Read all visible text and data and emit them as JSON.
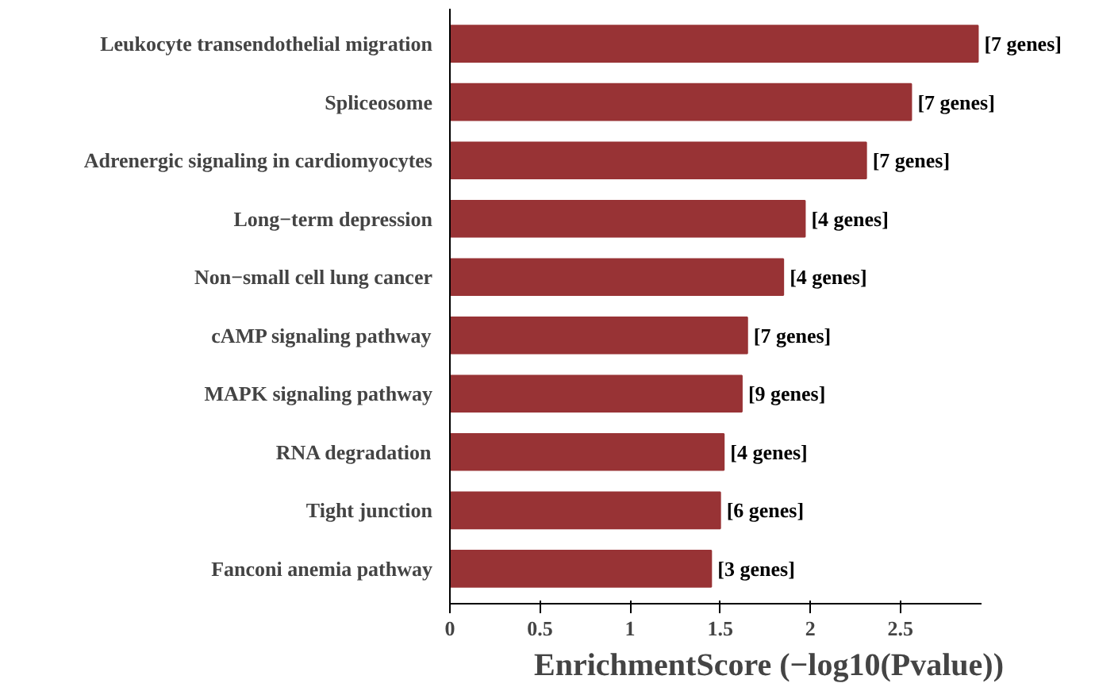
{
  "chart_data": {
    "type": "bar",
    "orientation": "horizontal",
    "xlabel": "EnrichmentScore (−log10(Pvalue))",
    "categories": [
      "Leukocyte transendothelial migration",
      "Spliceosome",
      "Adrenergic signaling in cardiomyocytes",
      "Long−term depression",
      "Non−small cell lung cancer",
      "cAMP signaling pathway",
      "MAPK signaling pathway",
      "RNA degradation",
      "Tight junction",
      "Fanconi anemia pathway"
    ],
    "values": [
      2.93,
      2.56,
      2.31,
      1.97,
      1.85,
      1.65,
      1.62,
      1.52,
      1.5,
      1.45
    ],
    "annotations": [
      {
        "text": "[7 genes]",
        "x": 2.93,
        "y": "Leukocyte transendothelial migration"
      },
      {
        "text": "[7 genes]",
        "x": 2.56,
        "y": "Spliceosome"
      },
      {
        "text": "[7 genes]",
        "x": 2.31,
        "y": "Adrenergic signaling in cardiomyocytes"
      },
      {
        "text": "[4 genes]",
        "x": 1.97,
        "y": "Long−term depression"
      },
      {
        "text": "[4 genes]",
        "x": 1.85,
        "y": "Non−small cell lung cancer"
      },
      {
        "text": "[7 genes]",
        "x": 1.65,
        "y": "cAMP signaling pathway"
      },
      {
        "text": "[9 genes]",
        "x": 1.62,
        "y": "MAPK signaling pathway"
      },
      {
        "text": "[4 genes]",
        "x": 1.52,
        "y": "RNA degradation"
      },
      {
        "text": "[6 genes]",
        "x": 1.5,
        "y": "Tight junction"
      },
      {
        "text": "[3 genes]",
        "x": 1.45,
        "y": "Fanconi anemia pathway"
      }
    ],
    "color": "#983335",
    "xlim": [
      0,
      2.95
    ],
    "xticks": [
      0,
      0.5,
      1,
      1.5,
      2,
      2.5
    ],
    "grid": false
  }
}
